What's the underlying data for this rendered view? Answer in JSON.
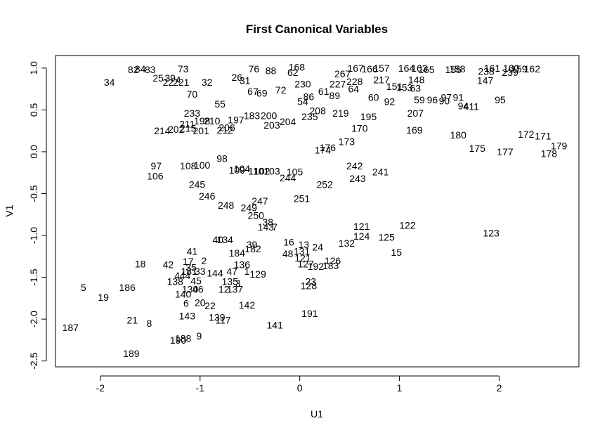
{
  "chart_data": {
    "type": "scatter",
    "title": "First Canonical Variables",
    "xlabel": "U1",
    "ylabel": "V1",
    "xlim": [
      -2.45,
      2.8
    ],
    "ylim": [
      -2.57,
      1.15
    ],
    "grid": false,
    "legend": "none",
    "xticks": [
      -2,
      -1,
      0,
      1,
      2
    ],
    "yticks": [
      -2.5,
      -2.0,
      -1.5,
      -1.0,
      -0.5,
      0.0,
      0.5,
      1.0
    ],
    "xtick_labels": [
      "-2",
      "-1",
      "0",
      "1",
      "2"
    ],
    "ytick_labels": [
      "-2.5",
      "-2.0",
      "-1.5",
      "-1.0",
      "-0.5",
      "0.0",
      "0.5",
      "1.0"
    ],
    "points": [
      {
        "label": "82",
        "x": -1.67,
        "y": 0.98
      },
      {
        "label": "84",
        "x": -1.6,
        "y": 0.99
      },
      {
        "label": "83",
        "x": -1.5,
        "y": 0.98
      },
      {
        "label": "73",
        "x": -1.17,
        "y": 0.99
      },
      {
        "label": "25",
        "x": -1.42,
        "y": 0.88
      },
      {
        "label": "39",
        "x": -1.3,
        "y": 0.88
      },
      {
        "label": "22",
        "x": -1.32,
        "y": 0.83
      },
      {
        "label": "4",
        "x": -1.22,
        "y": 0.86
      },
      {
        "label": "221",
        "x": -1.19,
        "y": 0.83
      },
      {
        "label": "34",
        "x": -1.91,
        "y": 0.83
      },
      {
        "label": "32",
        "x": -0.93,
        "y": 0.83
      },
      {
        "label": "70",
        "x": -1.08,
        "y": 0.69
      },
      {
        "label": "55",
        "x": -0.8,
        "y": 0.57
      },
      {
        "label": "233",
        "x": -1.08,
        "y": 0.46
      },
      {
        "label": "198",
        "x": -0.98,
        "y": 0.37
      },
      {
        "label": "210",
        "x": -0.88,
        "y": 0.37
      },
      {
        "label": "197",
        "x": -0.64,
        "y": 0.38
      },
      {
        "label": "211",
        "x": -1.13,
        "y": 0.33
      },
      {
        "label": "214",
        "x": -1.38,
        "y": 0.25
      },
      {
        "label": "202",
        "x": -1.24,
        "y": 0.27
      },
      {
        "label": "215",
        "x": -1.12,
        "y": 0.28
      },
      {
        "label": "201",
        "x": -0.99,
        "y": 0.25
      },
      {
        "label": "206",
        "x": -0.73,
        "y": 0.29
      },
      {
        "label": "212",
        "x": -0.75,
        "y": 0.26
      },
      {
        "label": "26",
        "x": -0.63,
        "y": 0.89
      },
      {
        "label": "76",
        "x": -0.46,
        "y": 0.99
      },
      {
        "label": "31",
        "x": -0.55,
        "y": 0.85
      },
      {
        "label": "67",
        "x": -0.47,
        "y": 0.72
      },
      {
        "label": "69",
        "x": -0.38,
        "y": 0.7
      },
      {
        "label": "72",
        "x": -0.19,
        "y": 0.74
      },
      {
        "label": "168",
        "x": -0.03,
        "y": 1.01
      },
      {
        "label": "88",
        "x": -0.29,
        "y": 0.97
      },
      {
        "label": "62",
        "x": -0.07,
        "y": 0.95
      },
      {
        "label": "54",
        "x": 0.03,
        "y": 0.6
      },
      {
        "label": "86",
        "x": 0.09,
        "y": 0.66
      },
      {
        "label": "230",
        "x": 0.03,
        "y": 0.81
      },
      {
        "label": "61",
        "x": 0.24,
        "y": 0.72
      },
      {
        "label": "267",
        "x": 0.43,
        "y": 0.93
      },
      {
        "label": "228",
        "x": 0.55,
        "y": 0.84
      },
      {
        "label": "217",
        "x": 0.82,
        "y": 0.86
      },
      {
        "label": "227",
        "x": 0.38,
        "y": 0.81
      },
      {
        "label": "60",
        "x": 0.74,
        "y": 0.65
      },
      {
        "label": "64",
        "x": 0.54,
        "y": 0.75
      },
      {
        "label": "89",
        "x": 0.35,
        "y": 0.67
      },
      {
        "label": "208",
        "x": 0.18,
        "y": 0.49
      },
      {
        "label": "235",
        "x": 0.1,
        "y": 0.42
      },
      {
        "label": "219",
        "x": 0.41,
        "y": 0.46
      },
      {
        "label": "195",
        "x": 0.69,
        "y": 0.42
      },
      {
        "label": "170",
        "x": 0.6,
        "y": 0.28
      },
      {
        "label": "173",
        "x": 0.47,
        "y": 0.12
      },
      {
        "label": "176",
        "x": 0.28,
        "y": 0.05
      },
      {
        "label": "174",
        "x": 0.23,
        "y": 0.02
      },
      {
        "label": "203",
        "x": -0.28,
        "y": 0.32
      },
      {
        "label": "204",
        "x": -0.12,
        "y": 0.36
      },
      {
        "label": "183",
        "x": -0.48,
        "y": 0.43
      },
      {
        "label": "200",
        "x": -0.31,
        "y": 0.43
      },
      {
        "label": "157",
        "x": 0.82,
        "y": 1.0
      },
      {
        "label": "166",
        "x": 0.7,
        "y": 0.99
      },
      {
        "label": "167",
        "x": 0.56,
        "y": 1.0
      },
      {
        "label": "164",
        "x": 1.07,
        "y": 1.0
      },
      {
        "label": "163",
        "x": 1.2,
        "y": 1.0
      },
      {
        "label": "165",
        "x": 1.27,
        "y": 0.98
      },
      {
        "label": "158",
        "x": 1.58,
        "y": 0.99
      },
      {
        "label": "156",
        "x": 1.54,
        "y": 0.98
      },
      {
        "label": "161",
        "x": 1.93,
        "y": 1.0
      },
      {
        "label": "160",
        "x": 2.12,
        "y": 1.0
      },
      {
        "label": "159",
        "x": 2.2,
        "y": 0.99
      },
      {
        "label": "162",
        "x": 2.33,
        "y": 0.99
      },
      {
        "label": "238",
        "x": 1.87,
        "y": 0.96
      },
      {
        "label": "239",
        "x": 2.11,
        "y": 0.95
      },
      {
        "label": "147",
        "x": 1.86,
        "y": 0.85
      },
      {
        "label": "148",
        "x": 1.17,
        "y": 0.86
      },
      {
        "label": "151",
        "x": 0.95,
        "y": 0.78
      },
      {
        "label": "153",
        "x": 1.05,
        "y": 0.77
      },
      {
        "label": "63",
        "x": 1.16,
        "y": 0.76
      },
      {
        "label": "59",
        "x": 1.2,
        "y": 0.62
      },
      {
        "label": "96",
        "x": 1.33,
        "y": 0.62
      },
      {
        "label": "97",
        "x": 1.47,
        "y": 0.65
      },
      {
        "label": "91",
        "x": 1.59,
        "y": 0.65
      },
      {
        "label": "90",
        "x": 1.45,
        "y": 0.61
      },
      {
        "label": "92",
        "x": 0.9,
        "y": 0.6
      },
      {
        "label": "94",
        "x": 1.64,
        "y": 0.55
      },
      {
        "label": "411",
        "x": 1.72,
        "y": 0.54
      },
      {
        "label": "95",
        "x": 2.01,
        "y": 0.62
      },
      {
        "label": "207",
        "x": 1.16,
        "y": 0.46
      },
      {
        "label": "169",
        "x": 1.15,
        "y": 0.26
      },
      {
        "label": "180",
        "x": 1.59,
        "y": 0.2
      },
      {
        "label": "172",
        "x": 2.27,
        "y": 0.21
      },
      {
        "label": "171",
        "x": 2.44,
        "y": 0.19
      },
      {
        "label": "179",
        "x": 2.6,
        "y": 0.07
      },
      {
        "label": "175",
        "x": 1.78,
        "y": 0.04
      },
      {
        "label": "177",
        "x": 2.06,
        "y": 0.0
      },
      {
        "label": "178",
        "x": 2.5,
        "y": -0.02
      },
      {
        "label": "97",
        "x": -1.44,
        "y": -0.17
      },
      {
        "label": "106",
        "x": -1.45,
        "y": -0.29
      },
      {
        "label": "108",
        "x": -1.12,
        "y": -0.17
      },
      {
        "label": "100",
        "x": -0.98,
        "y": -0.16
      },
      {
        "label": "98",
        "x": -0.78,
        "y": -0.08
      },
      {
        "label": "104",
        "x": -0.58,
        "y": -0.2
      },
      {
        "label": "109",
        "x": -0.63,
        "y": -0.22
      },
      {
        "label": "110",
        "x": -0.44,
        "y": -0.23
      },
      {
        "label": "102",
        "x": -0.38,
        "y": -0.23
      },
      {
        "label": "103",
        "x": -0.28,
        "y": -0.23
      },
      {
        "label": "105",
        "x": -0.05,
        "y": -0.24
      },
      {
        "label": "244",
        "x": -0.12,
        "y": -0.31
      },
      {
        "label": "245",
        "x": -1.03,
        "y": -0.39
      },
      {
        "label": "252",
        "x": 0.25,
        "y": -0.39
      },
      {
        "label": "242",
        "x": 0.55,
        "y": -0.17
      },
      {
        "label": "241",
        "x": 0.81,
        "y": -0.24
      },
      {
        "label": "243",
        "x": 0.58,
        "y": -0.32
      },
      {
        "label": "246",
        "x": -0.93,
        "y": -0.53
      },
      {
        "label": "248",
        "x": -0.74,
        "y": -0.64
      },
      {
        "label": "247",
        "x": -0.4,
        "y": -0.59
      },
      {
        "label": "249",
        "x": -0.51,
        "y": -0.67
      },
      {
        "label": "251",
        "x": 0.02,
        "y": -0.56
      },
      {
        "label": "250",
        "x": -0.44,
        "y": -0.76
      },
      {
        "label": "38",
        "x": -0.32,
        "y": -0.84
      },
      {
        "label": "143",
        "x": -0.34,
        "y": -0.9
      },
      {
        "label": "7",
        "x": -0.25,
        "y": -0.9
      },
      {
        "label": "40",
        "x": -0.82,
        "y": -1.05
      },
      {
        "label": "134",
        "x": -0.75,
        "y": -1.05
      },
      {
        "label": "39",
        "x": -0.48,
        "y": -1.11
      },
      {
        "label": "182",
        "x": -0.47,
        "y": -1.16
      },
      {
        "label": "184",
        "x": -0.63,
        "y": -1.21
      },
      {
        "label": "16",
        "x": -0.11,
        "y": -1.08
      },
      {
        "label": "13",
        "x": 0.04,
        "y": -1.11
      },
      {
        "label": "24",
        "x": 0.18,
        "y": -1.14
      },
      {
        "label": "131",
        "x": 0.02,
        "y": -1.19
      },
      {
        "label": "48",
        "x": -0.12,
        "y": -1.22
      },
      {
        "label": "121",
        "x": 0.62,
        "y": -0.89
      },
      {
        "label": "122",
        "x": 1.08,
        "y": -0.88
      },
      {
        "label": "124",
        "x": 0.62,
        "y": -1.01
      },
      {
        "label": "125",
        "x": 0.87,
        "y": -1.02
      },
      {
        "label": "132",
        "x": 0.47,
        "y": -1.09
      },
      {
        "label": "123",
        "x": 1.92,
        "y": -0.97
      },
      {
        "label": "15",
        "x": 0.97,
        "y": -1.2
      },
      {
        "label": "41",
        "x": -1.08,
        "y": -1.19
      },
      {
        "label": "18",
        "x": -1.6,
        "y": -1.34
      },
      {
        "label": "42",
        "x": -1.32,
        "y": -1.35
      },
      {
        "label": "17",
        "x": -1.12,
        "y": -1.31
      },
      {
        "label": "2",
        "x": -0.96,
        "y": -1.3
      },
      {
        "label": "35",
        "x": -1.09,
        "y": -1.38
      },
      {
        "label": "136",
        "x": -0.58,
        "y": -1.35
      },
      {
        "label": "121",
        "x": 0.03,
        "y": -1.27
      },
      {
        "label": "127",
        "x": 0.06,
        "y": -1.34
      },
      {
        "label": "192",
        "x": 0.16,
        "y": -1.37
      },
      {
        "label": "183",
        "x": 0.31,
        "y": -1.36
      },
      {
        "label": "126",
        "x": 0.33,
        "y": -1.3
      },
      {
        "label": "181",
        "x": -1.11,
        "y": -1.43
      },
      {
        "label": "33",
        "x": -1.0,
        "y": -1.43
      },
      {
        "label": "144",
        "x": -0.85,
        "y": -1.45
      },
      {
        "label": "47",
        "x": -0.68,
        "y": -1.43
      },
      {
        "label": "1",
        "x": -0.53,
        "y": -1.43
      },
      {
        "label": "129",
        "x": -0.42,
        "y": -1.46
      },
      {
        "label": "4",
        "x": -1.23,
        "y": -1.48
      },
      {
        "label": "44",
        "x": -1.15,
        "y": -1.48
      },
      {
        "label": "138",
        "x": -1.25,
        "y": -1.55
      },
      {
        "label": "45",
        "x": -1.04,
        "y": -1.54
      },
      {
        "label": "135",
        "x": -0.7,
        "y": -1.55
      },
      {
        "label": "3",
        "x": -0.62,
        "y": -1.57
      },
      {
        "label": "5",
        "x": -2.17,
        "y": -1.62
      },
      {
        "label": "186",
        "x": -1.73,
        "y": -1.62
      },
      {
        "label": "19",
        "x": -1.97,
        "y": -1.74
      },
      {
        "label": "130",
        "x": -1.1,
        "y": -1.64
      },
      {
        "label": "46",
        "x": -1.02,
        "y": -1.64
      },
      {
        "label": "12",
        "x": -0.76,
        "y": -1.64
      },
      {
        "label": "137",
        "x": -0.65,
        "y": -1.64
      },
      {
        "label": "128",
        "x": 0.09,
        "y": -1.6
      },
      {
        "label": "23",
        "x": 0.11,
        "y": -1.55
      },
      {
        "label": "140",
        "x": -1.17,
        "y": -1.7
      },
      {
        "label": "6",
        "x": -1.14,
        "y": -1.81
      },
      {
        "label": "20",
        "x": -1.0,
        "y": -1.8
      },
      {
        "label": "22",
        "x": -0.9,
        "y": -1.84
      },
      {
        "label": "142",
        "x": -0.53,
        "y": -1.83
      },
      {
        "label": "191",
        "x": 0.1,
        "y": -1.93
      },
      {
        "label": "143",
        "x": -1.13,
        "y": -1.96
      },
      {
        "label": "139",
        "x": -0.83,
        "y": -1.98
      },
      {
        "label": "117",
        "x": -0.77,
        "y": -2.01
      },
      {
        "label": "21",
        "x": -1.68,
        "y": -2.01
      },
      {
        "label": "8",
        "x": -1.51,
        "y": -2.05
      },
      {
        "label": "141",
        "x": -0.25,
        "y": -2.07
      },
      {
        "label": "187",
        "x": -2.3,
        "y": -2.1
      },
      {
        "label": "9",
        "x": -1.01,
        "y": -2.2
      },
      {
        "label": "188",
        "x": -1.17,
        "y": -2.23
      },
      {
        "label": "190",
        "x": -1.22,
        "y": -2.25
      },
      {
        "label": "189",
        "x": -1.69,
        "y": -2.41
      }
    ]
  }
}
